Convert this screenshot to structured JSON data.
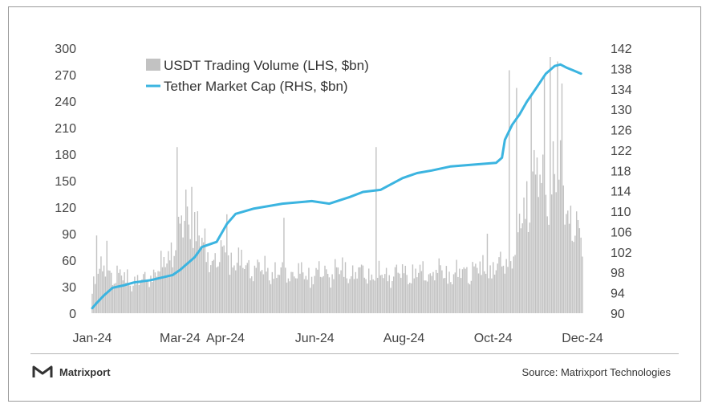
{
  "colors": {
    "bar": "#c2c2c2",
    "line": "#3bb4e0",
    "tick": "#444444"
  },
  "footer": {
    "brand": "Matrixport",
    "source": "Source: Matrixport Technologies",
    "logo_icon": "matrixport-logo-icon"
  },
  "chart_data": {
    "type": "bar+line",
    "grid": false,
    "legend_position": "top-left",
    "x_tick_labels": [
      "Jan-24",
      "Mar-24",
      "Apr-24",
      "Jun-24",
      "Aug-24",
      "Oct-24",
      "Dec-24"
    ],
    "x_tick_days": [
      0,
      60,
      91,
      152,
      213,
      274,
      335
    ],
    "left_axis": {
      "ticks": [
        0,
        30,
        60,
        90,
        120,
        150,
        180,
        210,
        240,
        270,
        300
      ],
      "ylim": [
        0,
        300
      ]
    },
    "right_axis": {
      "ticks": [
        90,
        94,
        98,
        102,
        106,
        110,
        114,
        118,
        122,
        126,
        130,
        134,
        138,
        142
      ],
      "ylim": [
        90,
        142
      ]
    },
    "series": [
      {
        "name": "USDT Trading Volume (LHS, $bn)",
        "type": "bar",
        "axis": "left",
        "anchors_day": [
          0,
          7,
          14,
          21,
          28,
          35,
          42,
          49,
          56,
          63,
          70,
          77,
          84,
          91,
          98,
          105,
          112,
          119,
          126,
          133,
          140,
          147,
          154,
          161,
          168,
          175,
          182,
          189,
          196,
          203,
          210,
          217,
          224,
          231,
          238,
          245,
          252,
          259,
          266,
          273,
          280,
          287,
          294,
          301,
          308,
          315,
          322,
          329,
          336
        ],
        "anchors_value": [
          40,
          55,
          50,
          45,
          40,
          40,
          50,
          60,
          90,
          110,
          110,
          80,
          65,
          75,
          65,
          60,
          55,
          55,
          50,
          50,
          50,
          48,
          50,
          50,
          55,
          52,
          50,
          50,
          48,
          48,
          50,
          50,
          50,
          50,
          52,
          50,
          50,
          55,
          55,
          55,
          60,
          70,
          120,
          170,
          160,
          180,
          150,
          110,
          80
        ],
        "spikes": [
          {
            "day": 3,
            "value": 88
          },
          {
            "day": 10,
            "value": 82
          },
          {
            "day": 58,
            "value": 188
          },
          {
            "day": 64,
            "value": 140
          },
          {
            "day": 68,
            "value": 143
          },
          {
            "day": 92,
            "value": 112
          },
          {
            "day": 131,
            "value": 108
          },
          {
            "day": 194,
            "value": 188
          },
          {
            "day": 270,
            "value": 90
          },
          {
            "day": 285,
            "value": 275
          },
          {
            "day": 290,
            "value": 255
          },
          {
            "day": 300,
            "value": 245
          },
          {
            "day": 309,
            "value": 270
          },
          {
            "day": 313,
            "value": 290
          },
          {
            "day": 318,
            "value": 285
          },
          {
            "day": 321,
            "value": 260
          }
        ]
      },
      {
        "name": "Tether Market Cap (RHS, $bn)",
        "type": "line",
        "axis": "right",
        "points": [
          [
            0,
            91
          ],
          [
            3,
            92
          ],
          [
            8,
            93.5
          ],
          [
            14,
            95
          ],
          [
            22,
            95.5
          ],
          [
            28,
            96
          ],
          [
            40,
            96.5
          ],
          [
            55,
            97.5
          ],
          [
            60,
            98.5
          ],
          [
            70,
            101
          ],
          [
            75,
            103
          ],
          [
            85,
            104
          ],
          [
            92,
            107.5
          ],
          [
            98,
            109.5
          ],
          [
            110,
            110.5
          ],
          [
            130,
            111.5
          ],
          [
            150,
            112
          ],
          [
            162,
            111.5
          ],
          [
            176,
            112.8
          ],
          [
            185,
            113.8
          ],
          [
            197,
            114.2
          ],
          [
            212,
            116.5
          ],
          [
            222,
            117.5
          ],
          [
            232,
            118
          ],
          [
            245,
            118.8
          ],
          [
            262,
            119.2
          ],
          [
            276,
            119.5
          ],
          [
            280,
            120.5
          ],
          [
            282,
            124
          ],
          [
            287,
            127
          ],
          [
            292,
            129
          ],
          [
            297,
            131.5
          ],
          [
            303,
            134
          ],
          [
            310,
            137
          ],
          [
            316,
            138.5
          ],
          [
            320,
            138.8
          ],
          [
            324,
            138.2
          ],
          [
            329,
            137.6
          ],
          [
            334,
            137
          ]
        ]
      }
    ]
  }
}
